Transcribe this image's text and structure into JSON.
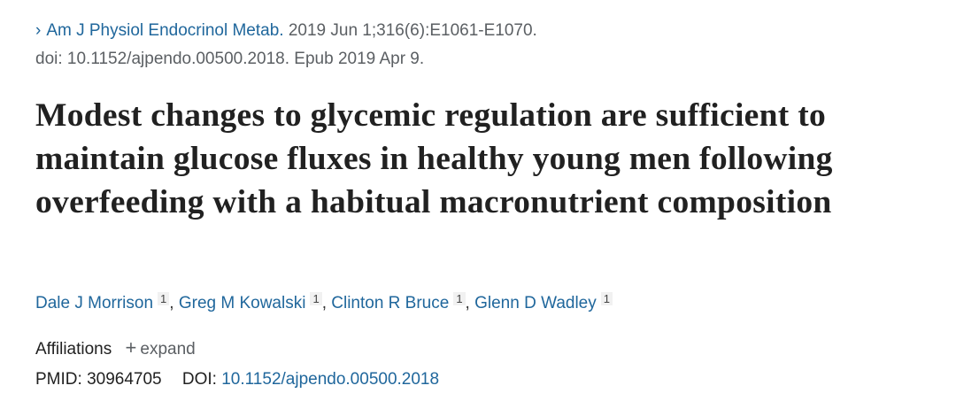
{
  "citation": {
    "journal": "Am J Physiol Endocrinol Metab.",
    "details": "2019 Jun 1;316(6):E1061-E1070.",
    "doi_line": "doi: 10.1152/ajpendo.00500.2018. Epub 2019 Apr 9."
  },
  "title": "Modest changes to glycemic regulation are sufficient to maintain glucose fluxes in healthy young men following overfeeding with a habitual macronutrient composition",
  "authors": [
    {
      "name": "Dale J Morrison",
      "aff": "1"
    },
    {
      "name": "Greg M Kowalski",
      "aff": "1"
    },
    {
      "name": "Clinton R Bruce",
      "aff": "1"
    },
    {
      "name": "Glenn D Wadley",
      "aff": "1"
    }
  ],
  "affiliations": {
    "label": "Affiliations",
    "expand": "expand"
  },
  "ids": {
    "pmid_label": "PMID:",
    "pmid": "30964705",
    "doi_label": "DOI:",
    "doi": "10.1152/ajpendo.00500.2018"
  },
  "colors": {
    "link": "#20679c",
    "text": "#212121",
    "muted": "#5b5f63"
  }
}
